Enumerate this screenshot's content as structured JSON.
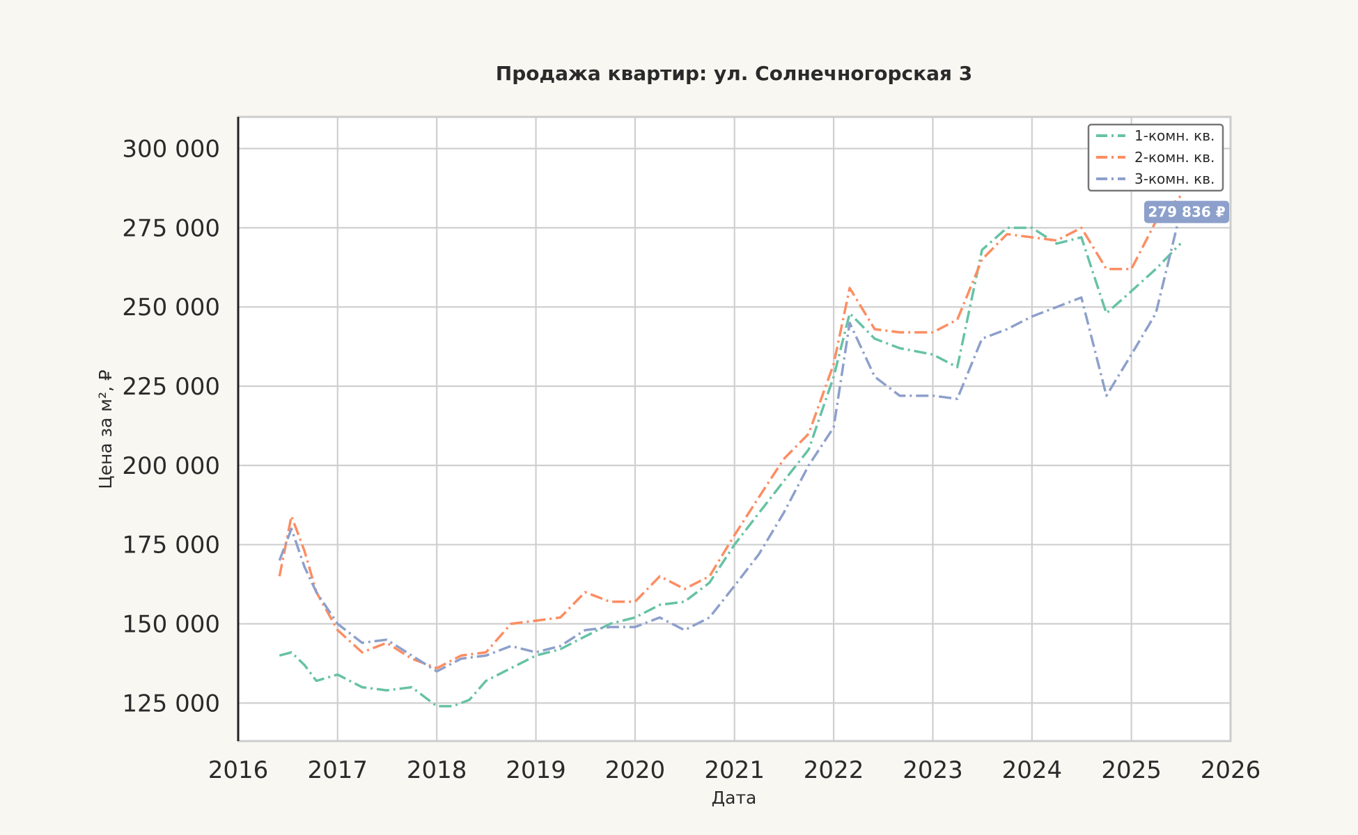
{
  "chart_data": {
    "type": "line",
    "title": "Продажа квартир: ул. Солнечногорская 3",
    "xlabel": "Дата",
    "ylabel": "Цена за м², ₽",
    "xlim": [
      "2016-01-01",
      "2026-01-01"
    ],
    "ylim": [
      113000,
      310000
    ],
    "x_ticks": [
      "2016",
      "2017",
      "2018",
      "2019",
      "2020",
      "2021",
      "2022",
      "2023",
      "2024",
      "2025",
      "2026"
    ],
    "y_ticks": [
      125000,
      150000,
      175000,
      200000,
      225000,
      250000,
      275000,
      300000
    ],
    "y_tick_labels": [
      "125 000",
      "150 000",
      "175 000",
      "200 000",
      "225 000",
      "250 000",
      "275 000",
      "300 000"
    ],
    "grid": true,
    "legend_position": "top-right",
    "series": [
      {
        "name": "1-комн. кв.",
        "color": "#66c2a5",
        "dash": "dashdot",
        "end_label": "",
        "points": [
          [
            "2016-06-01",
            140000
          ],
          [
            "2016-07-15",
            141000
          ],
          [
            "2016-09-01",
            137000
          ],
          [
            "2016-10-15",
            132000
          ],
          [
            "2017-01-01",
            134000
          ],
          [
            "2017-04-01",
            130000
          ],
          [
            "2017-07-01",
            129000
          ],
          [
            "2017-10-01",
            130000
          ],
          [
            "2018-01-01",
            124000
          ],
          [
            "2018-03-01",
            124000
          ],
          [
            "2018-05-01",
            126000
          ],
          [
            "2018-07-01",
            132000
          ],
          [
            "2018-10-01",
            136000
          ],
          [
            "2019-01-01",
            140000
          ],
          [
            "2019-04-01",
            142000
          ],
          [
            "2019-07-01",
            146000
          ],
          [
            "2019-10-01",
            150000
          ],
          [
            "2020-01-01",
            152000
          ],
          [
            "2020-04-01",
            156000
          ],
          [
            "2020-07-01",
            157000
          ],
          [
            "2020-10-01",
            163000
          ],
          [
            "2021-01-01",
            175000
          ],
          [
            "2021-04-01",
            185000
          ],
          [
            "2021-07-01",
            195000
          ],
          [
            "2021-10-01",
            205000
          ],
          [
            "2022-01-01",
            228000
          ],
          [
            "2022-03-01",
            248000
          ],
          [
            "2022-06-01",
            240000
          ],
          [
            "2022-09-01",
            237000
          ],
          [
            "2023-01-01",
            235000
          ],
          [
            "2023-04-01",
            231000
          ],
          [
            "2023-07-01",
            268000
          ],
          [
            "2023-10-01",
            275000
          ],
          [
            "2024-01-01",
            275000
          ],
          [
            "2024-04-01",
            270000
          ],
          [
            "2024-07-01",
            272000
          ],
          [
            "2024-10-01",
            248000
          ],
          [
            "2025-01-01",
            255000
          ],
          [
            "2025-04-01",
            262000
          ],
          [
            "2025-07-01",
            270000
          ]
        ]
      },
      {
        "name": "2-комн. кв.",
        "color": "#fc8d62",
        "dash": "dashdot",
        "end_label": "",
        "points": [
          [
            "2016-06-01",
            165000
          ],
          [
            "2016-07-15",
            184000
          ],
          [
            "2016-09-01",
            173000
          ],
          [
            "2016-10-15",
            160000
          ],
          [
            "2017-01-01",
            148000
          ],
          [
            "2017-04-01",
            141000
          ],
          [
            "2017-07-01",
            144000
          ],
          [
            "2017-10-01",
            139000
          ],
          [
            "2018-01-01",
            136000
          ],
          [
            "2018-04-01",
            140000
          ],
          [
            "2018-07-01",
            141000
          ],
          [
            "2018-10-01",
            150000
          ],
          [
            "2019-01-01",
            151000
          ],
          [
            "2019-04-01",
            152000
          ],
          [
            "2019-07-01",
            160000
          ],
          [
            "2019-10-01",
            157000
          ],
          [
            "2020-01-01",
            157000
          ],
          [
            "2020-04-01",
            165000
          ],
          [
            "2020-07-01",
            161000
          ],
          [
            "2020-10-01",
            165000
          ],
          [
            "2021-01-01",
            178000
          ],
          [
            "2021-04-01",
            190000
          ],
          [
            "2021-07-01",
            202000
          ],
          [
            "2021-10-01",
            210000
          ],
          [
            "2022-01-01",
            232000
          ],
          [
            "2022-03-01",
            256000
          ],
          [
            "2022-06-01",
            243000
          ],
          [
            "2022-09-01",
            242000
          ],
          [
            "2023-01-01",
            242000
          ],
          [
            "2023-04-01",
            246000
          ],
          [
            "2023-07-01",
            265000
          ],
          [
            "2023-10-01",
            273000
          ],
          [
            "2024-01-01",
            272000
          ],
          [
            "2024-04-01",
            271000
          ],
          [
            "2024-07-01",
            275000
          ],
          [
            "2024-10-01",
            262000
          ],
          [
            "2025-01-01",
            262000
          ],
          [
            "2025-04-01",
            277000
          ],
          [
            "2025-07-01",
            285000
          ]
        ]
      },
      {
        "name": "3-комн. кв.",
        "color": "#8da0cb",
        "dash": "dashdot",
        "end_label": "279 836 ₽",
        "points": [
          [
            "2016-06-01",
            170000
          ],
          [
            "2016-07-15",
            180000
          ],
          [
            "2016-09-01",
            168000
          ],
          [
            "2016-10-15",
            160000
          ],
          [
            "2017-01-01",
            150000
          ],
          [
            "2017-04-01",
            144000
          ],
          [
            "2017-07-01",
            145000
          ],
          [
            "2017-10-01",
            140000
          ],
          [
            "2018-01-01",
            135000
          ],
          [
            "2018-04-01",
            139000
          ],
          [
            "2018-07-01",
            140000
          ],
          [
            "2018-10-01",
            143000
          ],
          [
            "2019-01-01",
            141000
          ],
          [
            "2019-04-01",
            143000
          ],
          [
            "2019-07-01",
            148000
          ],
          [
            "2019-10-01",
            149000
          ],
          [
            "2020-01-01",
            149000
          ],
          [
            "2020-04-01",
            152000
          ],
          [
            "2020-07-01",
            148000
          ],
          [
            "2020-10-01",
            152000
          ],
          [
            "2021-01-01",
            162000
          ],
          [
            "2021-04-01",
            172000
          ],
          [
            "2021-07-01",
            185000
          ],
          [
            "2021-10-01",
            200000
          ],
          [
            "2022-01-01",
            212000
          ],
          [
            "2022-03-01",
            245000
          ],
          [
            "2022-06-01",
            228000
          ],
          [
            "2022-09-01",
            222000
          ],
          [
            "2023-01-01",
            222000
          ],
          [
            "2023-04-01",
            221000
          ],
          [
            "2023-07-01",
            240000
          ],
          [
            "2023-10-01",
            243000
          ],
          [
            "2024-01-01",
            247000
          ],
          [
            "2024-04-01",
            250000
          ],
          [
            "2024-07-01",
            253000
          ],
          [
            "2024-10-01",
            222000
          ],
          [
            "2025-01-01",
            235000
          ],
          [
            "2025-04-01",
            248000
          ],
          [
            "2025-07-01",
            280000
          ]
        ]
      }
    ]
  }
}
